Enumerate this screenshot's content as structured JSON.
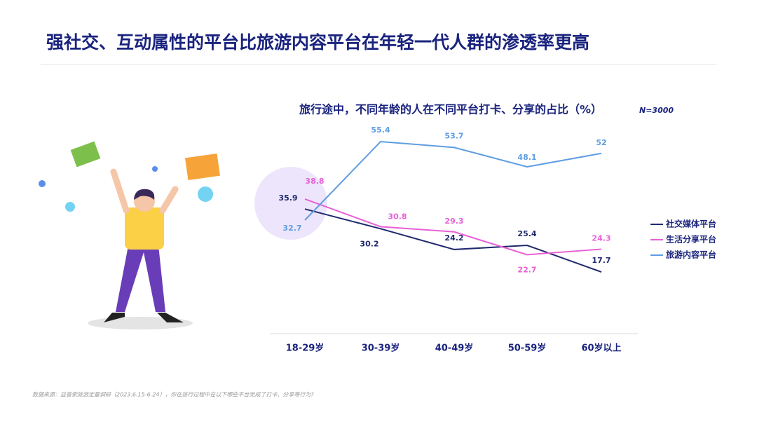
{
  "header": {
    "title": "强社交、互动属性的平台比旅游内容平台在年轻一代人群的渗透率更高"
  },
  "chart_data": {
    "type": "line",
    "title": "旅行途中，不同年龄的人在不同平台打卡、分享的占比（%）",
    "note": "N=3000",
    "categories": [
      "18-29岁",
      "30-39岁",
      "40-49岁",
      "50-59岁",
      "60岁以上"
    ],
    "series": [
      {
        "name": "社交媒体平台",
        "color": "#1f2a6e",
        "values": [
          35.9,
          30.2,
          24.2,
          25.4,
          17.7
        ]
      },
      {
        "name": "生活分享平台",
        "color": "#e860d6",
        "values": [
          38.8,
          30.8,
          29.3,
          22.7,
          24.3
        ]
      },
      {
        "name": "旅游内容平台",
        "color": "#5f9de2",
        "values": [
          32.7,
          55.4,
          53.7,
          48.1,
          52
        ]
      }
    ]
  },
  "footer": {
    "source": "数据来源：益普索旅游定量调研（2023.6.15-6.24），你在旅行过程中在以下哪些平台完成了打卡、分享等行为?"
  }
}
